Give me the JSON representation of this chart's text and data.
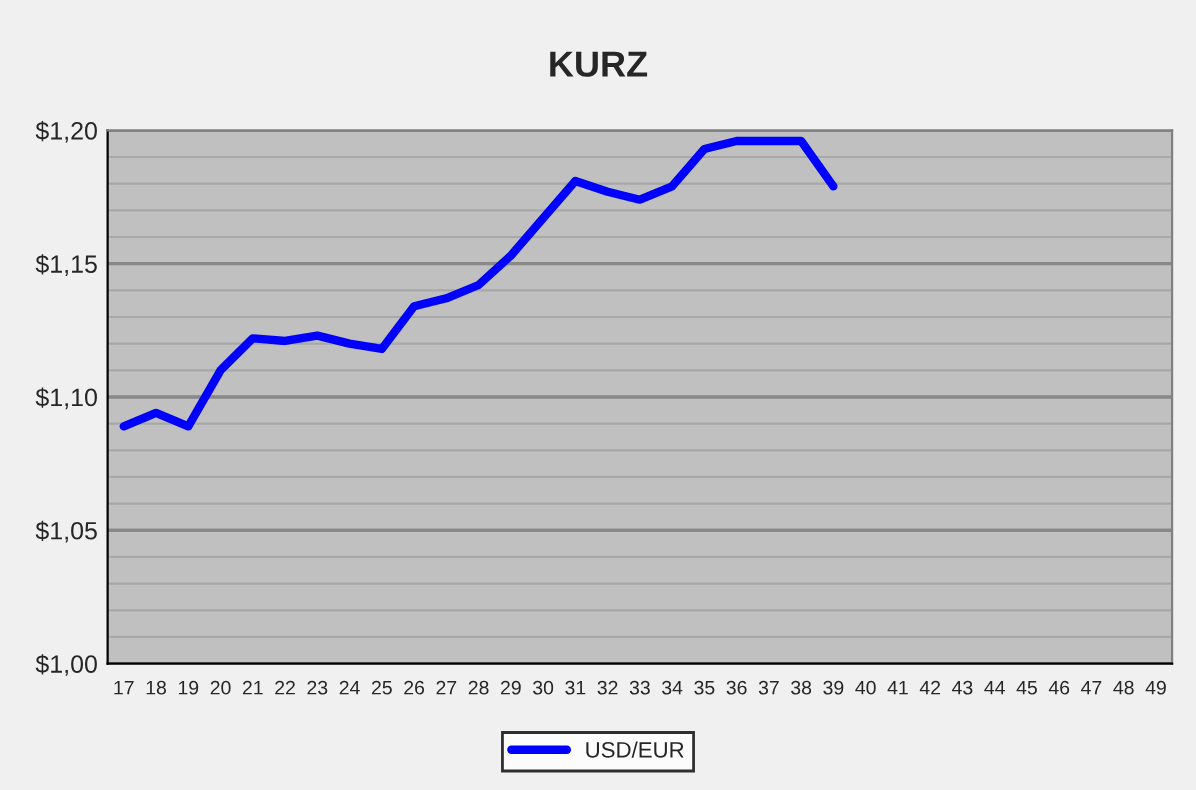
{
  "chart_data": {
    "type": "line",
    "title": "KURZ",
    "categories": [
      "17",
      "18",
      "19",
      "20",
      "21",
      "22",
      "23",
      "24",
      "25",
      "26",
      "27",
      "28",
      "29",
      "30",
      "31",
      "32",
      "33",
      "34",
      "35",
      "36",
      "37",
      "38",
      "39",
      "40",
      "41",
      "42",
      "43",
      "44",
      "45",
      "46",
      "47",
      "48",
      "49"
    ],
    "series": [
      {
        "name": "USD/EUR",
        "color": "#0000ff",
        "values": [
          1.089,
          1.094,
          1.089,
          1.11,
          1.122,
          1.121,
          1.123,
          1.12,
          1.118,
          1.134,
          1.137,
          1.142,
          1.153,
          1.167,
          1.181,
          1.177,
          1.174,
          1.179,
          1.193,
          1.196,
          1.196,
          1.196,
          1.179,
          null,
          null,
          null,
          null,
          null,
          null,
          null,
          null,
          null,
          null
        ]
      }
    ],
    "ylim": [
      1.0,
      1.2
    ],
    "yticks": [
      {
        "value": 1.0,
        "label": "$1,00"
      },
      {
        "value": 1.01,
        "label": null
      },
      {
        "value": 1.02,
        "label": null
      },
      {
        "value": 1.03,
        "label": null
      },
      {
        "value": 1.04,
        "label": null
      },
      {
        "value": 1.05,
        "label": "$1,05"
      },
      {
        "value": 1.06,
        "label": null
      },
      {
        "value": 1.07,
        "label": null
      },
      {
        "value": 1.08,
        "label": null
      },
      {
        "value": 1.09,
        "label": null
      },
      {
        "value": 1.1,
        "label": "$1,10"
      },
      {
        "value": 1.11,
        "label": null
      },
      {
        "value": 1.12,
        "label": null
      },
      {
        "value": 1.13,
        "label": null
      },
      {
        "value": 1.14,
        "label": null
      },
      {
        "value": 1.15,
        "label": "$1,15"
      },
      {
        "value": 1.16,
        "label": null
      },
      {
        "value": 1.17,
        "label": null
      },
      {
        "value": 1.18,
        "label": null
      },
      {
        "value": 1.19,
        "label": null
      },
      {
        "value": 1.2,
        "label": "$1,20"
      }
    ],
    "grid": "y",
    "legend": "bottom",
    "marker": "none",
    "line_style": "solid"
  }
}
